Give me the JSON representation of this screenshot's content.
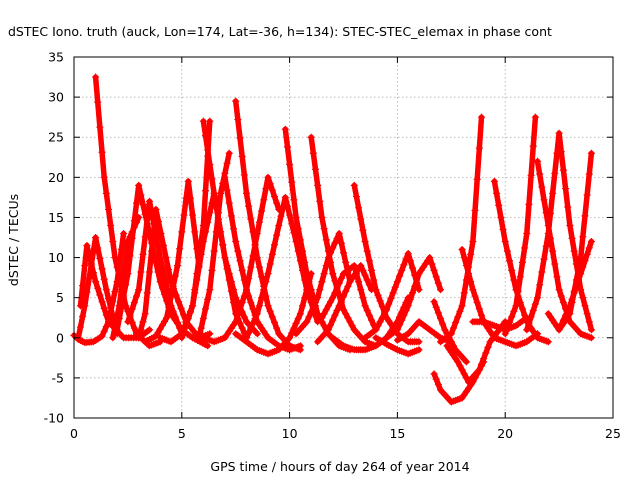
{
  "chart_data": {
    "type": "line",
    "title": "dSTEC Iono. truth (auck, Lon=174, Lat=-36, h=134): STEC-STEC_elemax in phase cont",
    "xlabel": "GPS time / hours of day 264 of year 2014",
    "ylabel": "dSTEC  / TECUs",
    "xlim": [
      0,
      25
    ],
    "ylim": [
      -10,
      35
    ],
    "xticks": [
      0,
      5,
      10,
      15,
      20,
      25
    ],
    "yticks": [
      -10,
      -5,
      0,
      5,
      10,
      15,
      20,
      25,
      30,
      35
    ],
    "grid": true,
    "marker": "plus",
    "color": "#ff0000",
    "series": [
      {
        "x": [
          0.0,
          0.2,
          0.5,
          0.9,
          1.3,
          1.6,
          2.0,
          2.3
        ],
        "y": [
          0.3,
          -0.2,
          -0.6,
          -0.5,
          0.2,
          2.0,
          7.0,
          13.0
        ]
      },
      {
        "x": [
          0.2,
          0.5,
          1.0,
          1.5,
          2.0
        ],
        "y": [
          0.0,
          4.0,
          12.5,
          6.0,
          0.5
        ]
      },
      {
        "x": [
          0.3,
          0.6,
          1.0,
          1.6,
          2.3,
          3.0,
          3.5
        ],
        "y": [
          4.0,
          11.5,
          7.0,
          2.0,
          0.0,
          0.0,
          1.0
        ]
      },
      {
        "x": [
          1.0,
          1.4,
          1.9,
          2.4,
          2.9,
          3.5,
          4.0
        ],
        "y": [
          32.5,
          20.0,
          10.0,
          4.0,
          0.5,
          -1.0,
          -0.5
        ]
      },
      {
        "x": [
          1.8,
          2.1,
          2.5,
          3.0
        ],
        "y": [
          0.0,
          4.0,
          12.0,
          15.0
        ]
      },
      {
        "x": [
          2.0,
          2.5,
          3.0,
          3.5,
          4.0,
          4.5,
          5.0,
          5.5,
          6.2
        ],
        "y": [
          1.0,
          8.0,
          19.0,
          13.0,
          7.0,
          3.0,
          1.0,
          0.0,
          -1.0
        ]
      },
      {
        "x": [
          2.5,
          3.0,
          3.5,
          4.0,
          4.5,
          5.0
        ],
        "y": [
          2.0,
          6.0,
          17.0,
          10.0,
          4.0,
          0.5
        ]
      },
      {
        "x": [
          3.0,
          3.3,
          3.8,
          4.5,
          5.2,
          5.8,
          6.3
        ],
        "y": [
          0.0,
          3.0,
          16.0,
          7.0,
          2.0,
          0.0,
          0.5
        ]
      },
      {
        "x": [
          3.3,
          3.8,
          4.3,
          4.8,
          5.3,
          5.8
        ],
        "y": [
          -0.5,
          0.2,
          2.5,
          9.0,
          19.5,
          9.0
        ]
      },
      {
        "x": [
          4.0,
          4.5,
          5.0,
          5.5,
          6.0,
          6.3
        ],
        "y": [
          0.0,
          -0.5,
          0.5,
          4.0,
          14.0,
          27.0
        ]
      },
      {
        "x": [
          5.0,
          5.5,
          6.0,
          6.5,
          7.0,
          7.5,
          8.0
        ],
        "y": [
          0.0,
          4.0,
          12.0,
          18.0,
          10.0,
          3.0,
          0.0
        ]
      },
      {
        "x": [
          6.0,
          6.5,
          7.0,
          7.5,
          8.0,
          8.5
        ],
        "y": [
          27.0,
          18.0,
          10.0,
          5.0,
          2.0,
          0.5
        ]
      },
      {
        "x": [
          5.8,
          6.3,
          6.8,
          7.2
        ],
        "y": [
          0.0,
          6.0,
          18.0,
          23.0
        ]
      },
      {
        "x": [
          6.0,
          6.5,
          7.0,
          7.5,
          8.0,
          8.5,
          9.0,
          9.5
        ],
        "y": [
          0.0,
          -0.5,
          0.0,
          2.0,
          6.0,
          13.0,
          20.0,
          16.0
        ]
      },
      {
        "x": [
          7.0,
          7.5,
          8.0,
          8.5,
          9.0,
          9.5,
          10.0,
          10.5
        ],
        "y": [
          20.0,
          12.0,
          6.0,
          2.0,
          0.0,
          -1.0,
          -1.5,
          -1.0
        ]
      },
      {
        "x": [
          7.5,
          8.0,
          8.5,
          9.0,
          9.5,
          10.0,
          10.5
        ],
        "y": [
          29.5,
          18.0,
          10.0,
          4.0,
          0.5,
          -1.0,
          -1.5
        ]
      },
      {
        "x": [
          7.5,
          8.0,
          8.5,
          9.0,
          9.5,
          10.0,
          10.5,
          11.0
        ],
        "y": [
          0.5,
          -0.5,
          -1.5,
          -2.0,
          -1.5,
          0.0,
          3.0,
          8.0
        ]
      },
      {
        "x": [
          8.0,
          8.5,
          9.0,
          9.5,
          9.8,
          10.3,
          10.8,
          11.3
        ],
        "y": [
          0.0,
          3.0,
          8.0,
          14.0,
          17.5,
          12.0,
          6.0,
          2.0
        ]
      },
      {
        "x": [
          9.8,
          10.3,
          10.8,
          11.3,
          11.8,
          12.3,
          12.8
        ],
        "y": [
          26.0,
          15.0,
          8.0,
          3.0,
          0.5,
          -1.0,
          -1.5
        ]
      },
      {
        "x": [
          10.3,
          10.8,
          11.3,
          11.8,
          12.3,
          12.8
        ],
        "y": [
          0.5,
          2.0,
          5.0,
          10.0,
          13.0,
          7.0
        ]
      },
      {
        "x": [
          11.0,
          11.5,
          12.0,
          12.5,
          13.0,
          13.5,
          14.0,
          14.5
        ],
        "y": [
          25.0,
          15.0,
          8.0,
          3.5,
          1.0,
          -0.5,
          -1.0,
          0.0
        ]
      },
      {
        "x": [
          11.3,
          11.8,
          12.3,
          12.8,
          13.3,
          13.8
        ],
        "y": [
          -0.5,
          1.0,
          4.0,
          7.0,
          9.0,
          6.0
        ]
      },
      {
        "x": [
          11.5,
          12.0,
          12.5,
          13.0,
          13.5,
          14.0
        ],
        "y": [
          2.5,
          5.0,
          8.0,
          9.0,
          4.0,
          1.0
        ]
      },
      {
        "x": [
          12.0,
          12.5,
          13.0,
          13.5,
          14.0,
          14.5,
          15.0,
          15.5
        ],
        "y": [
          0.0,
          -1.0,
          -1.5,
          -1.5,
          -1.0,
          0.0,
          2.0,
          5.0
        ]
      },
      {
        "x": [
          13.0,
          13.5,
          14.0,
          14.5,
          15.0,
          15.5,
          16.0
        ],
        "y": [
          19.0,
          12.0,
          6.0,
          2.5,
          0.5,
          -0.5,
          -0.5
        ]
      },
      {
        "x": [
          13.5,
          14.0,
          14.5,
          15.0,
          15.5,
          16.0
        ],
        "y": [
          0.0,
          1.0,
          3.5,
          7.0,
          10.5,
          6.0
        ]
      },
      {
        "x": [
          14.0,
          14.5,
          15.0,
          15.5,
          16.0
        ],
        "y": [
          0.0,
          -0.8,
          -1.5,
          -2.0,
          -1.5
        ]
      },
      {
        "x": [
          14.5,
          15.0,
          15.5,
          16.0,
          16.5,
          17.0
        ],
        "y": [
          0.0,
          1.0,
          4.0,
          8.0,
          10.0,
          6.0
        ]
      },
      {
        "x": [
          15.0,
          15.5,
          16.0,
          16.5,
          17.0,
          17.5
        ],
        "y": [
          -0.3,
          0.5,
          2.0,
          1.0,
          0.0,
          -0.5
        ]
      },
      {
        "x": [
          16.7,
          17.0,
          17.5,
          18.0,
          18.5,
          19.0
        ],
        "y": [
          -4.5,
          -6.5,
          -8.0,
          -7.5,
          -5.5,
          -3.0
        ]
      },
      {
        "x": [
          16.7,
          17.2,
          17.7,
          18.2
        ],
        "y": [
          4.5,
          1.0,
          -1.5,
          -3.0
        ]
      },
      {
        "x": [
          17.0,
          17.5,
          18.0,
          18.5,
          18.9
        ],
        "y": [
          -0.5,
          0.5,
          4.0,
          12.0,
          27.5
        ]
      },
      {
        "x": [
          17.3,
          17.8,
          18.3,
          18.8,
          19.3,
          20.0
        ],
        "y": [
          -1.0,
          -3.0,
          -5.5,
          -4.0,
          -0.5,
          2.0
        ]
      },
      {
        "x": [
          18.0,
          18.5,
          19.0,
          19.5,
          20.0,
          20.5,
          21.0,
          21.5
        ],
        "y": [
          11.0,
          6.0,
          2.0,
          0.0,
          -0.5,
          -1.0,
          -0.5,
          0.5
        ]
      },
      {
        "x": [
          18.5,
          19.0,
          19.5,
          20.0,
          20.5,
          21.0
        ],
        "y": [
          2.0,
          2.0,
          1.5,
          1.0,
          1.5,
          2.5
        ]
      },
      {
        "x": [
          19.5,
          20.0,
          20.5,
          21.0,
          21.5,
          22.0
        ],
        "y": [
          19.5,
          12.0,
          6.0,
          2.0,
          0.0,
          -0.5
        ]
      },
      {
        "x": [
          20.0,
          20.5,
          21.0,
          21.4
        ],
        "y": [
          0.5,
          4.0,
          13.0,
          27.5
        ]
      },
      {
        "x": [
          21.0,
          21.5,
          22.0,
          22.5,
          23.0,
          23.5,
          24.0
        ],
        "y": [
          1.0,
          5.0,
          13.0,
          25.5,
          14.0,
          6.0,
          1.0
        ]
      },
      {
        "x": [
          21.5,
          22.0,
          22.5,
          23.0,
          23.5,
          24.0
        ],
        "y": [
          22.0,
          14.0,
          6.0,
          2.0,
          0.5,
          0.0
        ]
      },
      {
        "x": [
          22.0,
          22.5,
          23.0,
          23.5,
          24.0
        ],
        "y": [
          3.0,
          1.0,
          3.0,
          10.0,
          23.0
        ]
      },
      {
        "x": [
          22.5,
          23.0,
          23.5,
          24.0
        ],
        "y": [
          1.0,
          4.0,
          8.0,
          12.0
        ]
      }
    ]
  }
}
